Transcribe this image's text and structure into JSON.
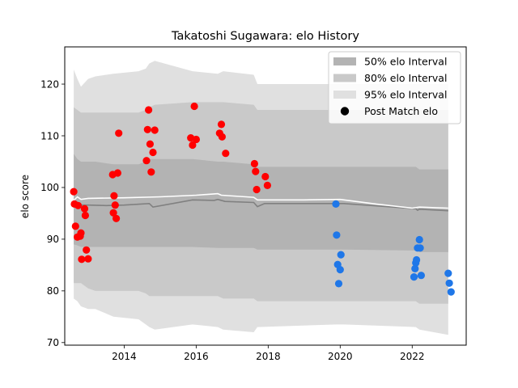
{
  "chart_data": {
    "type": "scatter",
    "title": "Takatoshi Sugawara: elo History",
    "xlabel": "",
    "ylabel": "elo score",
    "xlim": [
      2012.35,
      2023.5
    ],
    "ylim": [
      69.5,
      127.2
    ],
    "x_ticks": [
      2014,
      2016,
      2018,
      2020,
      2022
    ],
    "x_tick_labels": [
      "2014",
      "2016",
      "2018",
      "2020",
      "2022"
    ],
    "y_ticks": [
      70,
      80,
      90,
      100,
      110,
      120
    ],
    "y_tick_labels": [
      "70",
      "80",
      "90",
      "100",
      "110",
      "120"
    ],
    "legend_position": "top-right",
    "legend": [
      {
        "label": "50% elo Interval",
        "kind": "band",
        "color": "#b3b3b3"
      },
      {
        "label": "80% elo Interval",
        "kind": "band",
        "color": "#c9c9c9"
      },
      {
        "label": "95% elo Interval",
        "kind": "band",
        "color": "#e0e0e0"
      },
      {
        "label": "Post Match elo",
        "kind": "marker",
        "color": "#000000"
      }
    ],
    "bands_x": [
      2012.6,
      2012.7,
      2012.8,
      2013.0,
      2013.2,
      2013.7,
      2014.4,
      2014.6,
      2014.7,
      2014.85,
      2015.9,
      2016.6,
      2016.75,
      2017.6,
      2017.7,
      2019.9,
      2020.1,
      2022.1,
      2022.2,
      2023.0
    ],
    "band_95": {
      "upper": [
        122.8,
        121.0,
        119.5,
        121.0,
        121.5,
        122.0,
        122.5,
        123.0,
        124.0,
        124.5,
        122.5,
        122.0,
        122.5,
        121.8,
        120.0,
        120.0,
        120.0,
        120.0,
        120.0,
        120.0
      ],
      "lower": [
        78.5,
        78.0,
        77.0,
        76.5,
        76.5,
        75.0,
        74.5,
        73.5,
        73.0,
        72.5,
        73.5,
        73.0,
        72.5,
        72.0,
        73.0,
        73.5,
        73.5,
        73.0,
        72.5,
        71.5
      ]
    },
    "band_80": {
      "upper": [
        115.5,
        115.0,
        114.5,
        114.5,
        114.5,
        114.5,
        114.5,
        115.0,
        115.5,
        116.0,
        116.5,
        116.5,
        116.5,
        116.0,
        115.0,
        115.0,
        115.0,
        115.0,
        115.0,
        115.0
      ],
      "lower": [
        81.5,
        81.5,
        81.5,
        80.5,
        80.0,
        80.0,
        80.0,
        79.5,
        79.0,
        79.0,
        79.0,
        79.0,
        78.5,
        78.5,
        78.0,
        78.0,
        78.0,
        78.0,
        77.5,
        77.5
      ]
    },
    "band_50": {
      "upper": [
        106.5,
        105.5,
        105.0,
        105.0,
        105.0,
        104.5,
        104.5,
        105.0,
        105.5,
        105.5,
        105.5,
        105.0,
        105.0,
        104.5,
        104.0,
        104.0,
        104.0,
        104.0,
        103.5,
        103.5
      ],
      "lower": [
        89.0,
        88.8,
        88.5,
        88.5,
        88.5,
        88.5,
        88.5,
        88.5,
        88.5,
        88.5,
        88.5,
        88.3,
        88.3,
        88.3,
        88.0,
        88.0,
        88.0,
        87.8,
        87.5,
        87.5
      ]
    },
    "median_line": {
      "color": "#808080",
      "x": [
        2012.6,
        2012.7,
        2012.8,
        2013.0,
        2013.5,
        2014.0,
        2014.7,
        2014.8,
        2015.9,
        2016.5,
        2016.6,
        2016.8,
        2017.6,
        2017.7,
        2017.9,
        2019.9,
        2020.1,
        2022.1,
        2022.15,
        2022.2,
        2023.0
      ],
      "y": [
        96.3,
        96.8,
        96.6,
        96.6,
        96.5,
        96.6,
        96.9,
        96.2,
        97.6,
        97.5,
        97.7,
        97.3,
        97.1,
        96.3,
        96.9,
        96.9,
        96.9,
        95.9,
        95.6,
        95.8,
        95.5
      ]
    },
    "mean_line": {
      "color": "#ffffff",
      "x": [
        2012.6,
        2012.7,
        2012.8,
        2013.0,
        2014.0,
        2015.0,
        2016.0,
        2016.6,
        2016.7,
        2017.6,
        2017.7,
        2018.0,
        2019.0,
        2020.0,
        2021.0,
        2022.0,
        2022.2,
        2023.0
      ],
      "y": [
        97.5,
        98.2,
        97.7,
        97.9,
        98.0,
        98.2,
        98.5,
        98.8,
        98.5,
        98.1,
        97.6,
        97.6,
        97.6,
        97.7,
        96.8,
        96.0,
        96.2,
        96.0
      ]
    },
    "series": [
      {
        "name": "Post Match elo",
        "color": "#ff0000",
        "points": [
          [
            2012.6,
            99.2
          ],
          [
            2012.62,
            96.8
          ],
          [
            2012.65,
            92.5
          ],
          [
            2012.7,
            90.4
          ],
          [
            2012.72,
            96.5
          ],
          [
            2012.78,
            90.6
          ],
          [
            2012.8,
            91.2
          ],
          [
            2012.82,
            86.1
          ],
          [
            2012.9,
            95.9
          ],
          [
            2012.92,
            94.6
          ],
          [
            2012.95,
            87.9
          ],
          [
            2013.0,
            86.2
          ],
          [
            2013.68,
            102.5
          ],
          [
            2013.7,
            95.1
          ],
          [
            2013.72,
            98.4
          ],
          [
            2013.75,
            96.6
          ],
          [
            2013.78,
            94.0
          ],
          [
            2013.82,
            102.8
          ],
          [
            2013.85,
            110.5
          ],
          [
            2014.62,
            105.2
          ],
          [
            2014.65,
            111.2
          ],
          [
            2014.68,
            115.0
          ],
          [
            2014.72,
            108.4
          ],
          [
            2014.75,
            103.0
          ],
          [
            2014.8,
            106.8
          ],
          [
            2014.85,
            111.1
          ],
          [
            2015.85,
            109.6
          ],
          [
            2015.9,
            108.2
          ],
          [
            2015.95,
            115.7
          ],
          [
            2016.0,
            109.3
          ],
          [
            2016.65,
            110.5
          ],
          [
            2016.7,
            112.2
          ],
          [
            2016.72,
            109.8
          ],
          [
            2016.82,
            106.6
          ],
          [
            2017.62,
            104.6
          ],
          [
            2017.65,
            103.1
          ],
          [
            2017.68,
            99.6
          ],
          [
            2017.92,
            102.1
          ],
          [
            2017.98,
            100.4
          ]
        ]
      },
      {
        "name": "Post Match elo",
        "color": "#1f77e8",
        "points": [
          [
            2019.88,
            96.8
          ],
          [
            2019.9,
            90.8
          ],
          [
            2019.93,
            85.1
          ],
          [
            2019.96,
            81.4
          ],
          [
            2020.0,
            84.1
          ],
          [
            2020.02,
            87.0
          ],
          [
            2022.05,
            82.7
          ],
          [
            2022.08,
            84.3
          ],
          [
            2022.1,
            85.4
          ],
          [
            2022.12,
            86.0
          ],
          [
            2022.15,
            88.3
          ],
          [
            2022.2,
            89.9
          ],
          [
            2022.22,
            88.3
          ],
          [
            2022.25,
            83.0
          ],
          [
            2023.0,
            83.4
          ],
          [
            2023.03,
            81.5
          ],
          [
            2023.08,
            79.8
          ]
        ]
      }
    ]
  }
}
